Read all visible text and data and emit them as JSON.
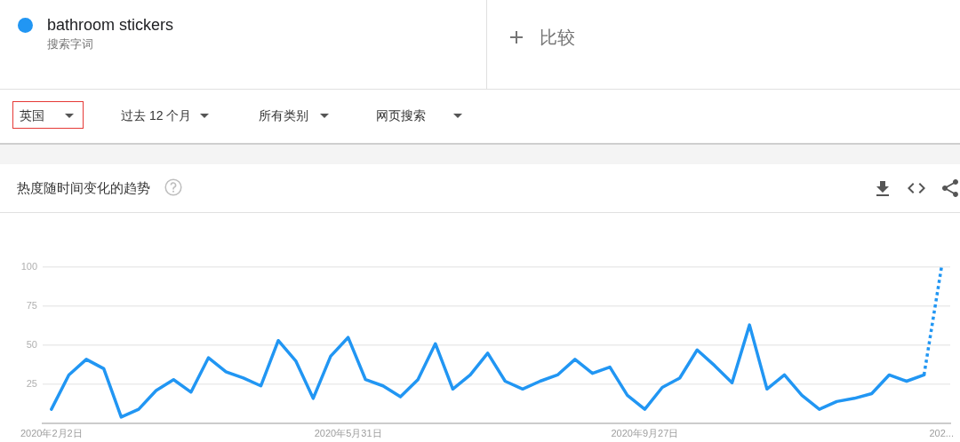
{
  "chart_data": {
    "type": "line",
    "title": "热度随时间变化的趋势",
    "annotations": [
      "搜索字词",
      "比较",
      "英国",
      "过去 12 个月",
      "所有类别",
      "网页搜索"
    ],
    "categories": [
      "2020年2月2日",
      null,
      null,
      null,
      null,
      null,
      null,
      null,
      null,
      null,
      null,
      null,
      null,
      null,
      null,
      null,
      null,
      "2020年5月31日",
      null,
      null,
      null,
      null,
      null,
      null,
      null,
      null,
      null,
      null,
      null,
      null,
      null,
      null,
      null,
      null,
      "2020年9月27日",
      null,
      null,
      null,
      null,
      null,
      null,
      null,
      null,
      null,
      null,
      null,
      null,
      null,
      null,
      null,
      null,
      "202..."
    ],
    "series": [
      {
        "name": "bathroom stickers",
        "color": "#2196f3",
        "line_style": "solid",
        "values": [
          9,
          31,
          41,
          35,
          4,
          9,
          21,
          28,
          20,
          42,
          33,
          29,
          24,
          53,
          40,
          16,
          43,
          55,
          28,
          24,
          17,
          28,
          51,
          22,
          31,
          45,
          27,
          22,
          27,
          31,
          41,
          32,
          36,
          18,
          9,
          23,
          29,
          47,
          37,
          26,
          63,
          22,
          31,
          18,
          9,
          14,
          16,
          19,
          31,
          27,
          31,
          null
        ]
      },
      {
        "color": "#2196f3",
        "line_style": "dotted",
        "values": [
          null,
          null,
          null,
          null,
          null,
          null,
          null,
          null,
          null,
          null,
          null,
          null,
          null,
          null,
          null,
          null,
          null,
          null,
          null,
          null,
          null,
          null,
          null,
          null,
          null,
          null,
          null,
          null,
          null,
          null,
          null,
          null,
          null,
          null,
          null,
          null,
          null,
          null,
          null,
          null,
          null,
          null,
          null,
          null,
          null,
          null,
          null,
          null,
          null,
          null,
          31,
          100
        ]
      }
    ],
    "ylim": [
      0,
      100
    ],
    "yticks": [
      25,
      50,
      75,
      100
    ],
    "grid": "y",
    "legend": "top left"
  }
}
